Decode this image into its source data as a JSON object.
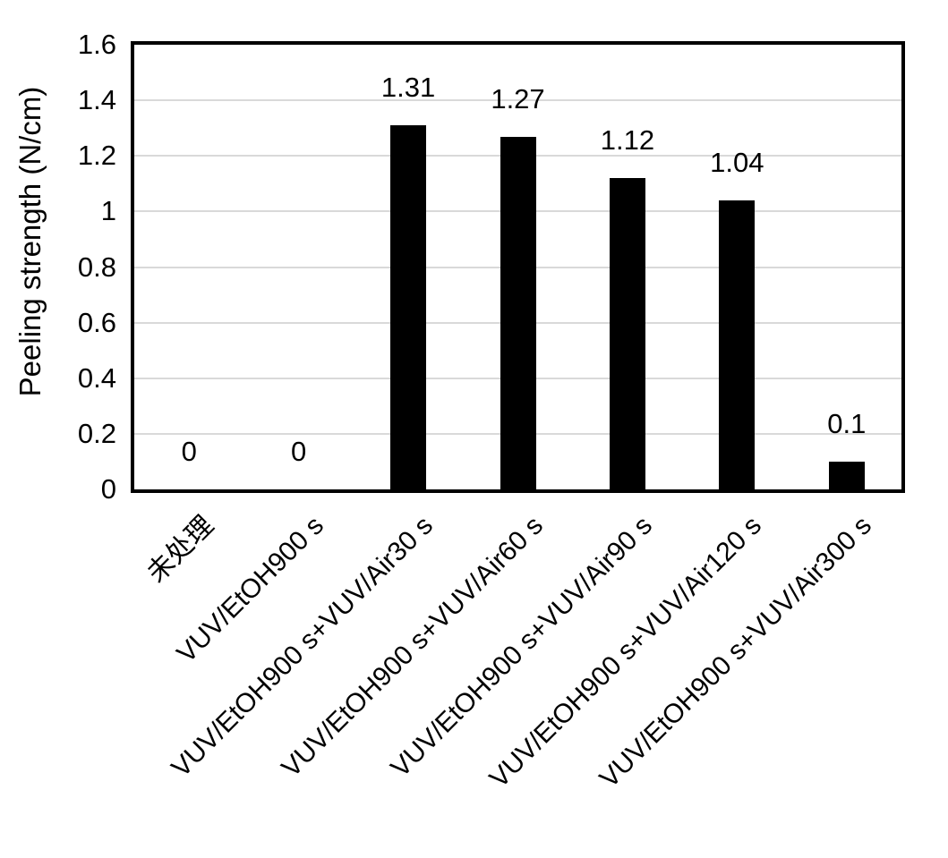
{
  "chart_data": {
    "type": "bar",
    "title": "",
    "xlabel": "",
    "ylabel": "Peeling strength (N/cm)",
    "ylim": [
      0,
      1.6
    ],
    "ytick_labels": [
      "0",
      "0.2",
      "0.4",
      "0.6",
      "0.8",
      "1",
      "1.2",
      "1.4",
      "1.6"
    ],
    "categories": [
      "未处理",
      "VUV/EtOH900 s",
      "VUV/EtOH900 s+VUV/Air30 s",
      "VUV/EtOH900 s+VUV/Air60 s",
      "VUV/EtOH900 s+VUV/Air90 s",
      "VUV/EtOH900 s+VUV/Air120 s",
      "VUV/EtOH900 s+VUV/Air300 s"
    ],
    "values": [
      0,
      0,
      1.31,
      1.27,
      1.12,
      1.04,
      0.1
    ],
    "data_labels": [
      "0",
      "0",
      "1.31",
      "1.27",
      "1.12",
      "1.04",
      "0.1"
    ],
    "x_label_rotation_deg": 45,
    "grid": true,
    "legend": false,
    "colors": {
      "bar": "#000000",
      "gridline": "#d9d9d9",
      "axis": "#000000",
      "text": "#000000",
      "background": "#ffffff"
    }
  }
}
